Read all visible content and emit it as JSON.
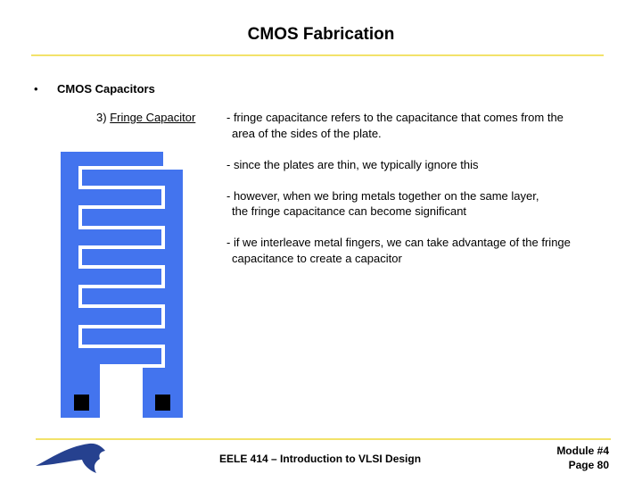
{
  "header": {
    "title": "CMOS Fabrication"
  },
  "bullet": "CMOS Capacitors",
  "item": {
    "number": "3)",
    "name": "Fringe Capacitor"
  },
  "notes": [
    [
      "- fringe capacitance refers to the capacitance that comes from the",
      "area of the sides of the plate."
    ],
    [
      "- since the plates are thin, we typically ignore this"
    ],
    [
      "- however, when we bring metals together on the same layer,",
      "the fringe capacitance can become significant"
    ],
    [
      "- if we interleave metal fingers, we can take advantage of the fringe",
      "capacitance to create a capacitor"
    ]
  ],
  "footer": {
    "course": "EELE 414 – Introduction to VLSI Design",
    "module": "Module #4",
    "page": "Page 80"
  }
}
